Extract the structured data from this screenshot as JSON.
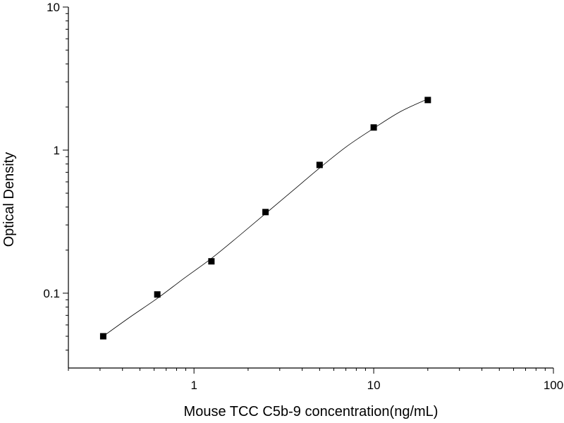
{
  "chart_data": {
    "type": "scatter",
    "xlabel": "Mouse TCC C5b-9 concentration(ng/mL)",
    "ylabel": "Optical Density",
    "xscale": "log",
    "yscale": "log",
    "xlim": [
      0.2,
      100
    ],
    "ylim": [
      0.03,
      10
    ],
    "xticks": [
      1,
      10,
      100
    ],
    "yticks": [
      0.1,
      1,
      10
    ],
    "xminorticks": [
      0.2,
      0.3,
      0.4,
      0.5,
      0.6,
      0.7,
      0.8,
      0.9,
      2,
      3,
      4,
      5,
      6,
      7,
      8,
      9,
      20,
      30,
      40,
      50,
      60,
      70,
      80,
      90
    ],
    "yminorticks": [
      0.04,
      0.05,
      0.06,
      0.07,
      0.08,
      0.09,
      0.2,
      0.3,
      0.4,
      0.5,
      0.6,
      0.7,
      0.8,
      0.9,
      2,
      3,
      4,
      5,
      6,
      7,
      8,
      9
    ],
    "series": [
      {
        "type": "scatter",
        "color": "#000000",
        "x": [
          0.3125,
          0.625,
          1.25,
          2.5,
          5,
          10,
          20
        ],
        "values": [
          0.05,
          0.098,
          0.167,
          0.369,
          0.788,
          1.44,
          2.24
        ]
      },
      {
        "type": "line",
        "color": "#000000",
        "x": [
          0.3125,
          0.44,
          0.625,
          0.88,
          1.25,
          1.77,
          2.5,
          3.54,
          5,
          7.07,
          10,
          14.1,
          20
        ],
        "values": [
          0.05,
          0.068,
          0.092,
          0.127,
          0.175,
          0.25,
          0.36,
          0.52,
          0.75,
          1.06,
          1.42,
          1.86,
          2.28
        ]
      }
    ]
  }
}
